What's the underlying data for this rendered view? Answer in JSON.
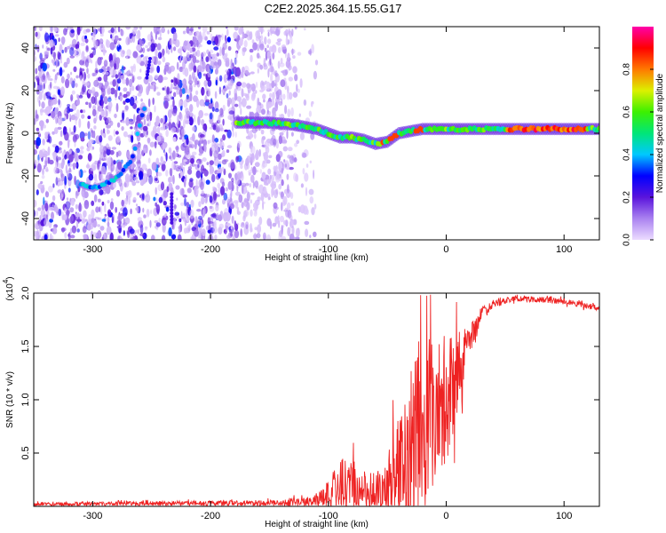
{
  "title": "C2E2.2025.364.15.55.G17",
  "chart_data": [
    {
      "type": "heatmap",
      "name": "spectrogram",
      "xlabel": "Height of straight line (km)",
      "ylabel": "Frequency (Hz)",
      "xlim": [
        -350,
        130
      ],
      "ylim": [
        -50,
        50
      ],
      "xticks": [
        -300,
        -200,
        -100,
        0,
        100
      ],
      "yticks": [
        -40,
        -20,
        0,
        20,
        40
      ],
      "colorbar": {
        "label": "Normalized spectral amplitude",
        "range": [
          0,
          1
        ],
        "ticks": [
          0.0,
          0.2,
          0.4,
          0.6,
          0.8
        ]
      },
      "ridge": {
        "description": "Dominant frequency trace",
        "x": [
          -310,
          -300,
          -290,
          -280,
          -270,
          -265,
          -262,
          -258,
          -255,
          -180,
          -170,
          -150,
          -130,
          -110,
          -100,
          -90,
          -80,
          -70,
          -60,
          -50,
          -40,
          -30,
          -20,
          -10,
          0,
          20,
          60,
          100,
          130
        ],
        "y": [
          -24,
          -26,
          -24,
          -21,
          -15,
          -10,
          0,
          8,
          13,
          5,
          5,
          5,
          4,
          2,
          0,
          -2,
          -2,
          -3,
          -5,
          -4,
          0,
          1,
          2,
          2,
          2,
          2,
          2,
          2,
          2
        ]
      }
    },
    {
      "type": "line",
      "name": "snr",
      "xlabel": "Height of straight line (km)",
      "ylabel": "SNR (10 * v/v)",
      "scale_label": "(x10",
      "scale_exp": "4",
      "scale_close": ")",
      "xlim": [
        -350,
        130
      ],
      "ylim": [
        0,
        2.0
      ],
      "xticks": [
        -300,
        -200,
        -100,
        0,
        100
      ],
      "yticks": [
        0.5,
        1.0,
        1.5,
        2.0
      ],
      "ytick_labels": [
        "0.5",
        "1.0",
        "1.5",
        "2.0"
      ],
      "color": "#ee2222",
      "envelope": {
        "x": [
          -350,
          -250,
          -150,
          -110,
          -100,
          -90,
          -80,
          -70,
          -60,
          -50,
          -40,
          -30,
          -20,
          -10,
          0,
          10,
          20,
          30,
          40,
          60,
          80,
          100,
          120,
          130
        ],
        "base": [
          0.02,
          0.03,
          0.03,
          0.05,
          0.12,
          0.2,
          0.2,
          0.15,
          0.12,
          0.15,
          0.35,
          0.55,
          0.8,
          0.9,
          1.0,
          1.25,
          1.55,
          1.8,
          1.9,
          1.95,
          1.94,
          1.92,
          1.88,
          1.86
        ],
        "amp": [
          0.02,
          0.02,
          0.03,
          0.05,
          0.15,
          0.3,
          0.3,
          0.2,
          0.2,
          0.35,
          0.6,
          0.8,
          0.9,
          0.8,
          0.7,
          0.4,
          0.2,
          0.08,
          0.04,
          0.03,
          0.03,
          0.03,
          0.03,
          0.03
        ]
      }
    }
  ]
}
